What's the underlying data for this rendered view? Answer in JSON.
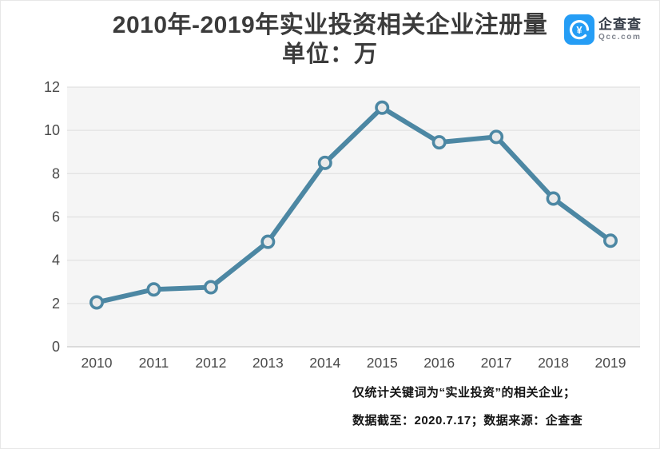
{
  "header": {
    "title_line1": "2010年-2019年实业投资相关企业注册量",
    "title_line2": "单位：万"
  },
  "logo": {
    "brand": "企查查",
    "domain": "Qcc.com",
    "icon": "qcc-swirl-icon",
    "icon_color": "#259df5",
    "icon_glyph": "¥"
  },
  "chart_data": {
    "type": "line",
    "title": "2010年-2019年实业投资相关企业注册量",
    "subtitle": "单位：万",
    "categories": [
      "2010",
      "2011",
      "2012",
      "2013",
      "2014",
      "2015",
      "2016",
      "2017",
      "2018",
      "2019"
    ],
    "values": [
      2.05,
      2.65,
      2.75,
      4.85,
      8.5,
      11.05,
      9.45,
      9.7,
      6.85,
      4.9
    ],
    "xlabel": "",
    "ylabel": "",
    "ylim": [
      0,
      12
    ],
    "ytick_step": 2,
    "grid": true,
    "legend_position": "none",
    "colors": {
      "line": "#4c87a3",
      "marker_fill": "#eaeaea",
      "plot_background": "#f5f5f5",
      "gridline": "#e3e3e3",
      "zero_line": "#d2d2d2",
      "tick_text": "#4a4a4a"
    }
  },
  "footnote": {
    "line1": "仅统计关键词为“实业投资”的相关企业；",
    "line2": "数据截至：2020.7.17；数据来源：企查查"
  }
}
